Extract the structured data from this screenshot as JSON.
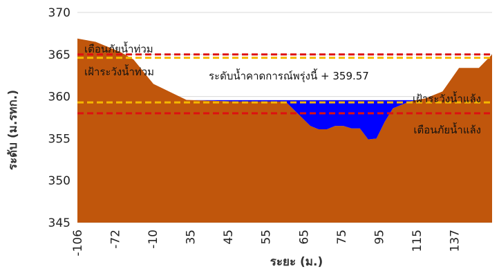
{
  "chart_data": {
    "type": "area",
    "title": "",
    "xlabel": "ระยะ (ม.)",
    "ylabel": "ระดับ (ม.รทก.)",
    "ylim": [
      345,
      370
    ],
    "yticks": [
      345,
      350,
      355,
      360,
      365,
      370
    ],
    "grid": "horizontal",
    "x_categories": [
      "-106",
      "-72",
      "-10",
      "35",
      "45",
      "55",
      "65",
      "75",
      "95",
      "115",
      "137"
    ],
    "ground_profile": {
      "name": "",
      "color": "#c0560c",
      "x": [
        -106,
        -95,
        -80,
        -72,
        -60,
        -40,
        -10,
        20,
        35,
        40,
        45,
        50,
        55,
        60,
        65,
        70,
        75,
        80,
        85,
        95,
        105,
        115,
        125,
        137,
        145
      ],
      "y": [
        366.9,
        366.5,
        365.3,
        364.4,
        361.5,
        359.6,
        359.4,
        359.4,
        356.5,
        356.1,
        356.1,
        356.5,
        356.5,
        356.2,
        356.2,
        354.9,
        355.0,
        357.0,
        358.6,
        359.4,
        359.8,
        360.6,
        363.4,
        363.4,
        365.0
      ]
    },
    "water_level": {
      "value": 359.57,
      "color": "#0000ff"
    },
    "reference_lines": [
      {
        "value": 365.0,
        "color": "#dd1111"
      },
      {
        "value": 364.6,
        "color": "#f5b800"
      },
      {
        "value": 359.3,
        "color": "#f5b800"
      },
      {
        "value": 358.0,
        "color": "#dd1111"
      }
    ],
    "annotations": [
      {
        "text": "เตือนภัยน้ำท่วม",
        "anchor": "start"
      },
      {
        "text": "เฝ้าระวังน้ำท่วม",
        "anchor": "start"
      },
      {
        "text": "ระดับน้ำคาดการณ์พรุ่งนี้ + 359.57",
        "anchor": "start"
      },
      {
        "text": "เฝ้าระวังน้ำแล้ง",
        "anchor": "end"
      },
      {
        "text": "เตือนภัยน้ำแล้ง",
        "anchor": "end"
      }
    ]
  }
}
